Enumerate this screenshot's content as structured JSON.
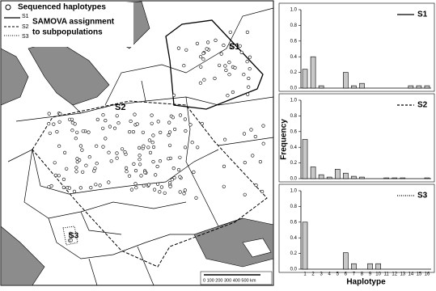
{
  "map": {
    "legend": {
      "points": "Sequenced haplotypes",
      "lines": [
        "S1",
        "S2",
        "S3"
      ],
      "caption": [
        "SAMOVA assignment",
        "to subpopulations"
      ]
    },
    "labels": [
      "S1",
      "S2",
      "S3"
    ],
    "scale": "0 100 200 300 400 500 km"
  },
  "chart_data": [
    {
      "type": "bar",
      "ylim": [
        0,
        1
      ],
      "yticks": [
        {
          "value": 0,
          "label": "0.0"
        },
        0.2,
        0.4,
        0.6,
        0.8,
        {
          "value": 1,
          "label": "1.0"
        }
      ],
      "series": [
        {
          "name": "S1",
          "color": "#c8c8c8",
          "line_style": "solid",
          "values": [
            0.24,
            0.4,
            0.03,
            0,
            0,
            0.2,
            0.03,
            0.06,
            0,
            0,
            0,
            0,
            0,
            0.03,
            0.03,
            0.03
          ]
        }
      ]
    },
    {
      "type": "bar",
      "ylabel": "Frequency",
      "ylim": [
        0,
        1
      ],
      "yticks": [
        {
          "value": 0,
          "label": "0.0"
        },
        0.2,
        0.4,
        0.6,
        0.8,
        {
          "value": 1,
          "label": "1.0"
        }
      ],
      "series": [
        {
          "name": "S2",
          "color": "#c8c8c8",
          "line_style": "dashed",
          "values": [
            0.5,
            0.15,
            0.05,
            0.02,
            0.12,
            0.07,
            0.03,
            0.02,
            0,
            0,
            0.01,
            0.01,
            0.01,
            0,
            0,
            0.01
          ]
        }
      ]
    },
    {
      "type": "bar",
      "xlabel": "Haplotype",
      "ylim": [
        0,
        1
      ],
      "yticks": [
        {
          "value": 0,
          "label": "0.0"
        },
        0.2,
        0.4,
        0.6,
        0.8,
        {
          "value": 1,
          "label": "1.0"
        }
      ],
      "categories": [
        "1",
        "2",
        "3",
        "4",
        "5",
        "6",
        "7",
        "8",
        "9",
        "10",
        "11",
        "12",
        "13",
        "14",
        "15",
        "16"
      ],
      "series": [
        {
          "name": "S3",
          "color": "#c8c8c8",
          "line_style": "dotted",
          "values": [
            0.6,
            0,
            0,
            0,
            0,
            0.21,
            0.07,
            0,
            0.07,
            0.07,
            0,
            0,
            0,
            0,
            0,
            0
          ]
        }
      ]
    }
  ]
}
